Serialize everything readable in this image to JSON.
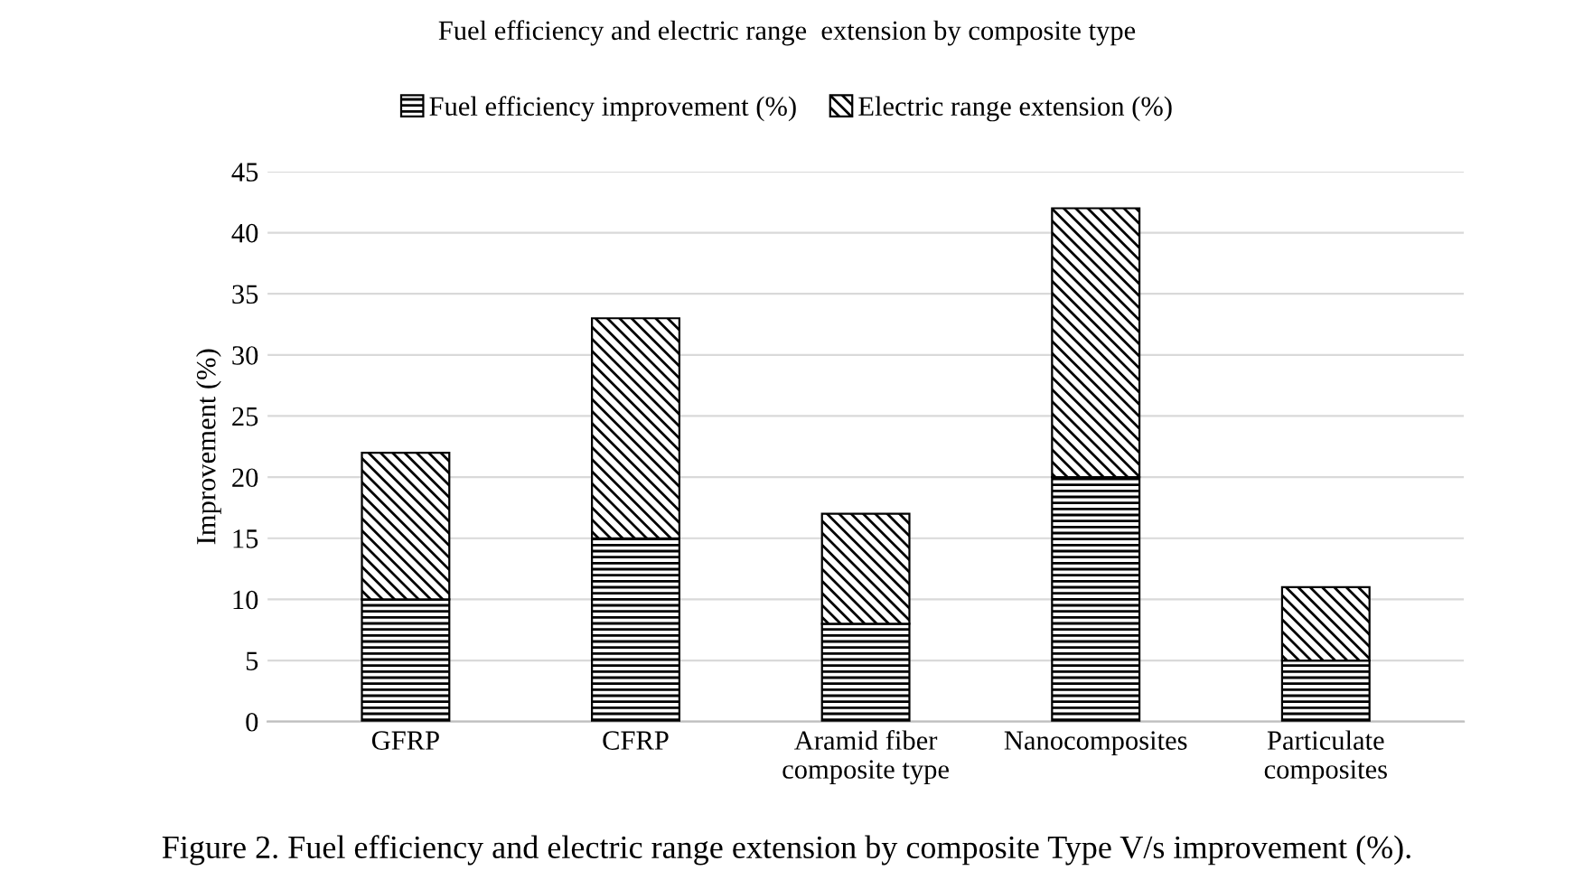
{
  "chart_data": {
    "type": "bar",
    "title": "Fuel efficiency and electric range  extension by composite type",
    "ylabel": "Improvement (%)",
    "categories": [
      "GFRP",
      "CFRP",
      "Aramid fiber\ncomposite type",
      "Nanocomposites",
      "Particulate\ncomposites"
    ],
    "series": [
      {
        "name": "Fuel efficiency improvement (%)",
        "color": "#000000",
        "values": [
          10,
          15,
          8,
          20,
          5
        ]
      },
      {
        "name": "Electric range extension (%)",
        "color": "#000000",
        "values": [
          12,
          18,
          9,
          22,
          6
        ]
      }
    ],
    "stacked": true,
    "ylim": [
      0,
      45
    ],
    "yticks": [
      0,
      5,
      10,
      15,
      20,
      25,
      30,
      35,
      40,
      45
    ],
    "grid": "y",
    "legend": "top",
    "annotations": [
      "Figure 2. Fuel efficiency and electric range extension by composite Type V/s improvement (%)."
    ]
  }
}
